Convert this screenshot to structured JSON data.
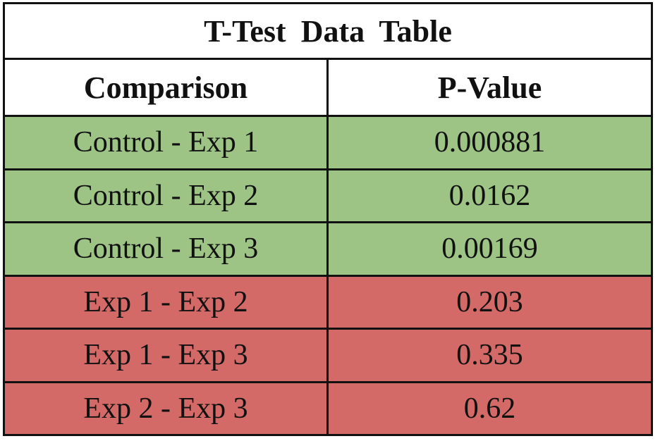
{
  "chart_data": {
    "type": "table",
    "title": "T-Test  Data Table",
    "columns": [
      "Comparison",
      "P-Value"
    ],
    "rows": [
      {
        "comparison": "Control - Exp 1",
        "p_value": "0.000881",
        "significant": true
      },
      {
        "comparison": "Control - Exp 2",
        "p_value": "0.0162",
        "significant": true
      },
      {
        "comparison": "Control - Exp 3",
        "p_value": "0.00169",
        "significant": true
      },
      {
        "comparison": "Exp 1 - Exp 2",
        "p_value": "0.203",
        "significant": false
      },
      {
        "comparison": "Exp 1 - Exp 3",
        "p_value": "0.335",
        "significant": false
      },
      {
        "comparison": "Exp 2 - Exp 3",
        "p_value": "0.62",
        "significant": false
      }
    ],
    "colors": {
      "significant": "#9dc385",
      "not_significant": "#d46a67",
      "header": "#ffffff",
      "border": "#111111"
    }
  }
}
